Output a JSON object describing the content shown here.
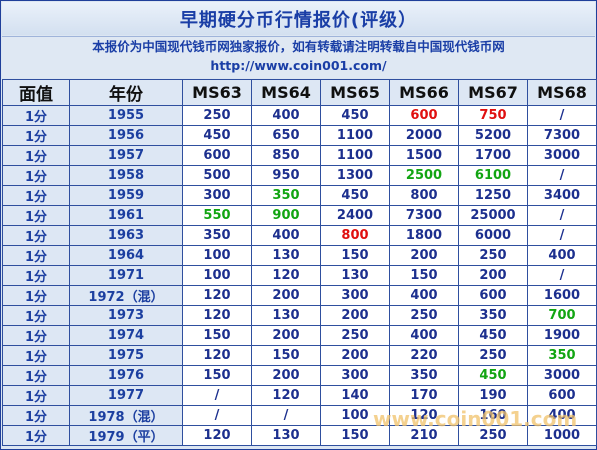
{
  "title": "早期硬分币行情报价(评级）",
  "notice": {
    "line1": "本报价为中国现代钱币网独家报价，如有转载请注明转载自中国现代钱币网",
    "line2": "http://www.coin001.com/"
  },
  "columns": [
    "面值",
    "年份",
    "MS63",
    "MS64",
    "MS65",
    "MS66",
    "MS67",
    "MS68"
  ],
  "colors": {
    "red": "#e01010",
    "green": "#12a512",
    "blue": "#1c2f8e"
  },
  "rows": [
    {
      "unit": "1分",
      "year": "1955",
      "values": [
        "250",
        "400",
        "450",
        "600",
        "750",
        "/"
      ],
      "colors": [
        "",
        "",
        "",
        "red",
        "red",
        ""
      ]
    },
    {
      "unit": "1分",
      "year": "1956",
      "values": [
        "450",
        "650",
        "1100",
        "2000",
        "5200",
        "7300"
      ],
      "colors": [
        "",
        "",
        "",
        "",
        "",
        ""
      ]
    },
    {
      "unit": "1分",
      "year": "1957",
      "values": [
        "600",
        "850",
        "1100",
        "1500",
        "1700",
        "3000"
      ],
      "colors": [
        "",
        "",
        "",
        "",
        "",
        ""
      ]
    },
    {
      "unit": "1分",
      "year": "1958",
      "values": [
        "500",
        "950",
        "1300",
        "2500",
        "6100",
        "/"
      ],
      "colors": [
        "",
        "",
        "",
        "green",
        "green",
        ""
      ]
    },
    {
      "unit": "1分",
      "year": "1959",
      "values": [
        "300",
        "350",
        "450",
        "800",
        "1250",
        "3400"
      ],
      "colors": [
        "",
        "green",
        "",
        "",
        "",
        ""
      ]
    },
    {
      "unit": "1分",
      "year": "1961",
      "values": [
        "550",
        "900",
        "2400",
        "7300",
        "25000",
        "/"
      ],
      "colors": [
        "green",
        "green",
        "",
        "",
        "",
        ""
      ]
    },
    {
      "unit": "1分",
      "year": "1963",
      "values": [
        "350",
        "400",
        "800",
        "1800",
        "6000",
        "/"
      ],
      "colors": [
        "",
        "",
        "red",
        "",
        "",
        ""
      ]
    },
    {
      "unit": "1分",
      "year": "1964",
      "values": [
        "100",
        "130",
        "150",
        "200",
        "250",
        "400"
      ],
      "colors": [
        "",
        "",
        "",
        "",
        "",
        ""
      ]
    },
    {
      "unit": "1分",
      "year": "1971",
      "values": [
        "100",
        "120",
        "130",
        "150",
        "200",
        "/"
      ],
      "colors": [
        "",
        "",
        "",
        "",
        "",
        ""
      ]
    },
    {
      "unit": "1分",
      "year": "1972（混）",
      "values": [
        "120",
        "200",
        "300",
        "400",
        "600",
        "1600"
      ],
      "colors": [
        "",
        "",
        "",
        "",
        "",
        ""
      ]
    },
    {
      "unit": "1分",
      "year": "1973",
      "values": [
        "120",
        "130",
        "200",
        "250",
        "350",
        "700"
      ],
      "colors": [
        "",
        "",
        "",
        "",
        "",
        "green"
      ]
    },
    {
      "unit": "1分",
      "year": "1974",
      "values": [
        "150",
        "200",
        "250",
        "400",
        "450",
        "1900"
      ],
      "colors": [
        "",
        "",
        "",
        "",
        "",
        ""
      ]
    },
    {
      "unit": "1分",
      "year": "1975",
      "values": [
        "120",
        "150",
        "200",
        "220",
        "250",
        "350"
      ],
      "colors": [
        "",
        "",
        "",
        "",
        "",
        "green"
      ]
    },
    {
      "unit": "1分",
      "year": "1976",
      "values": [
        "150",
        "200",
        "300",
        "350",
        "450",
        "3000"
      ],
      "colors": [
        "",
        "",
        "",
        "",
        "green",
        ""
      ]
    },
    {
      "unit": "1分",
      "year": "1977",
      "values": [
        "/",
        "120",
        "140",
        "170",
        "190",
        "600"
      ],
      "colors": [
        "",
        "",
        "",
        "",
        "",
        ""
      ]
    },
    {
      "unit": "1分",
      "year": "1978（混）",
      "values": [
        "/",
        "/",
        "100",
        "120",
        "160",
        "400"
      ],
      "colors": [
        "",
        "",
        "",
        "",
        "",
        ""
      ]
    },
    {
      "unit": "1分",
      "year": "1979（平）",
      "values": [
        "120",
        "130",
        "150",
        "210",
        "250",
        "1000"
      ],
      "colors": [
        "",
        "",
        "",
        "",
        "",
        ""
      ]
    }
  ],
  "watermark": "www.coin001.com"
}
